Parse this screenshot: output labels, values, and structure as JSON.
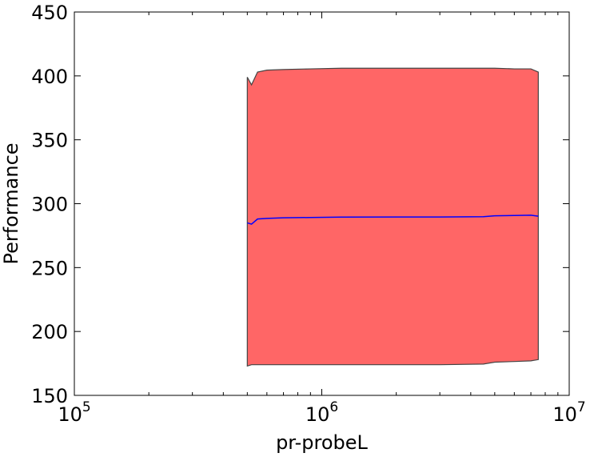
{
  "chart_data": {
    "type": "area",
    "title": "",
    "xlabel": "pr-probeL",
    "ylabel": "Performance",
    "xscale": "log",
    "xlim": [
      100000,
      10000000
    ],
    "ylim": [
      150,
      450
    ],
    "grid": false,
    "x_ticks": [
      {
        "value": 100000,
        "base": "10",
        "exp": "5"
      },
      {
        "value": 1000000,
        "base": "10",
        "exp": "6"
      },
      {
        "value": 10000000,
        "base": "10",
        "exp": "7"
      }
    ],
    "y_ticks": [
      150,
      200,
      250,
      300,
      350,
      400,
      450
    ],
    "y_tick_labels": [
      "150",
      "200",
      "250",
      "300",
      "350",
      "400",
      "450"
    ],
    "colors": {
      "band_fill": "#ff6666",
      "band_edge": "#444444",
      "mean_line": "#0000ff"
    },
    "series": [
      {
        "kind": "band",
        "x": [
          500000,
          520000,
          550000,
          600000,
          700000,
          900000,
          1200000,
          2000000,
          3000000,
          4500000,
          5000000,
          6000000,
          7000000,
          7500000
        ],
        "upper": [
          399,
          393,
          403,
          404.5,
          405,
          405.5,
          406,
          406,
          406,
          406,
          406,
          405.5,
          405.5,
          403
        ],
        "lower": [
          173,
          174,
          174,
          174,
          174,
          174,
          174,
          174,
          174,
          174.5,
          176,
          176.5,
          177,
          178
        ]
      },
      {
        "kind": "line",
        "x": [
          500000,
          520000,
          550000,
          600000,
          700000,
          900000,
          1200000,
          2000000,
          3000000,
          4500000,
          5000000,
          6000000,
          7000000,
          7500000
        ],
        "y": [
          285,
          284,
          288,
          288.5,
          289,
          289.2,
          289.5,
          289.6,
          289.6,
          289.8,
          290.5,
          290.8,
          291,
          290.2
        ]
      }
    ]
  }
}
